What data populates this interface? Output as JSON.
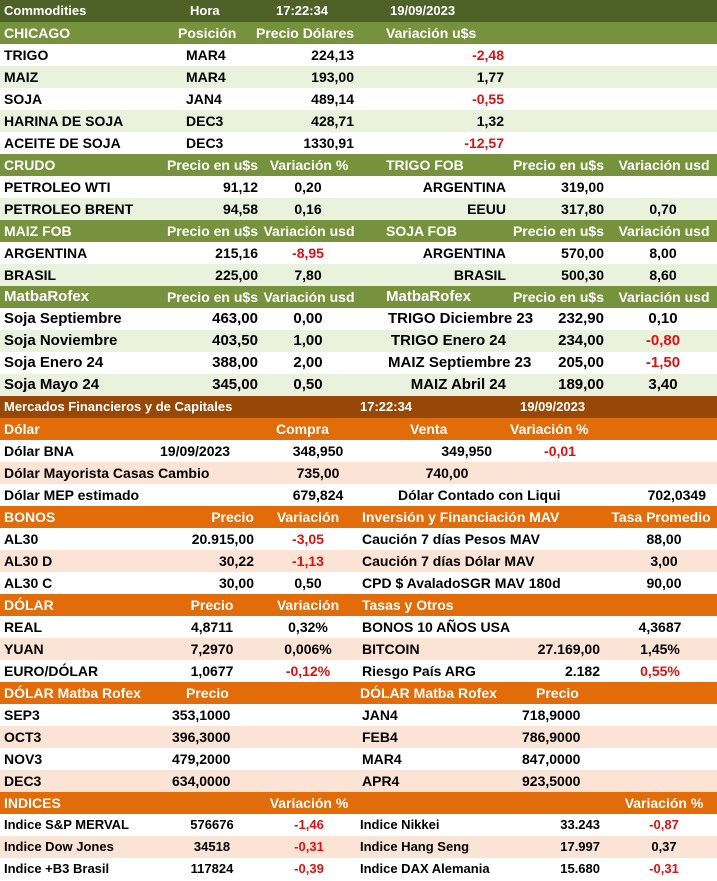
{
  "header": {
    "title": "Commodities",
    "hora_label": "Hora",
    "time": "17:22:34",
    "date": "19/09/2023"
  },
  "chicago": {
    "headers": [
      "CHICAGO",
      "Posición",
      "Precio Dólares",
      "Variación u$s"
    ],
    "rows": [
      {
        "name": "TRIGO",
        "pos": "MAR4",
        "price": "224,13",
        "var": "-2,48"
      },
      {
        "name": "MAIZ",
        "pos": "MAR4",
        "price": "193,00",
        "var": "1,77"
      },
      {
        "name": "SOJA",
        "pos": "JAN4",
        "price": "489,14",
        "var": "-0,55"
      },
      {
        "name": "HARINA DE SOJA",
        "pos": "DEC3",
        "price": "428,71",
        "var": "1,32"
      },
      {
        "name": "ACEITE DE SOJA",
        "pos": "DEC3",
        "price": "1330,91",
        "var": "-12,57"
      }
    ]
  },
  "crudo_fob": {
    "headers": [
      "CRUDO",
      "Precio en u$s",
      "Variación %",
      "TRIGO FOB",
      "Precio en u$s",
      "Variación usd"
    ],
    "rows": [
      {
        "a": "PETROLEO WTI",
        "b": "91,12",
        "c": "0,20",
        "d": "ARGENTINA",
        "e": "319,00",
        "f": ""
      },
      {
        "a": "PETROLEO BRENT",
        "b": "94,58",
        "c": "0,16",
        "d": "EEUU",
        "e": "317,80",
        "f": "0,70"
      }
    ]
  },
  "maiz_soja_fob": {
    "headers": [
      "MAIZ FOB",
      "Precio en u$s",
      "Variación usd",
      "SOJA FOB",
      "Precio en u$s",
      "Variación usd"
    ],
    "rows": [
      {
        "a": "ARGENTINA",
        "b": "215,16",
        "c": "-8,95",
        "d": "ARGENTINA",
        "e": "570,00",
        "f": "8,00"
      },
      {
        "a": "BRASIL",
        "b": "225,00",
        "c": "7,80",
        "d": "BRASIL",
        "e": "500,30",
        "f": "8,60"
      }
    ]
  },
  "matba": {
    "headers": [
      "MatbaRofex",
      "Precio en u$s",
      "Variación usd",
      "MatbaRofex",
      "Precio en u$s",
      "Variación usd"
    ],
    "rows": [
      {
        "a": "Soja Septiembre",
        "b": "463,00",
        "c": "0,00",
        "d": "TRIGO Diciembre 23",
        "e": "232,90",
        "f": "0,10"
      },
      {
        "a": "Soja Noviembre",
        "b": "403,50",
        "c": "1,00",
        "d": "TRIGO Enero 24",
        "e": "234,00",
        "f": "-0,80"
      },
      {
        "a": "Soja Enero 24",
        "b": "388,00",
        "c": "2,00",
        "d": "MAIZ Septiembre 23",
        "e": "205,00",
        "f": "-1,50"
      },
      {
        "a": "Soja Mayo 24",
        "b": "345,00",
        "c": "0,50",
        "d": "MAIZ Abril 24",
        "e": "189,00",
        "f": "3,40"
      }
    ]
  },
  "mercados": {
    "title": "Mercados Financieros y de Capitales",
    "time": "17:22:34",
    "date": "19/09/2023"
  },
  "dolar": {
    "headers": [
      "Dólar",
      "Compra",
      "Venta",
      "Variación %"
    ],
    "bna": {
      "label": "Dólar BNA",
      "date": "19/09/2023",
      "compra": "348,950",
      "venta": "349,950",
      "var": "-0,01"
    },
    "mayorista": {
      "label": "Dólar Mayorista Casas Cambio",
      "compra": "735,00",
      "venta": "740,00"
    },
    "mep": {
      "label": "Dólar MEP estimado",
      "compra": "679,824",
      "ccl_label": "Dólar Contado con Liqui",
      "ccl_value": "702,0349"
    }
  },
  "bonos": {
    "headers": [
      "BONOS",
      "Precio",
      "Variación",
      "Inversión y Financiación MAV",
      "Tasa Promedio"
    ],
    "rows": [
      {
        "a": "AL30",
        "b": "20.915,00",
        "c": "-3,05",
        "d": "Caución 7 días Pesos MAV",
        "e": "88,00"
      },
      {
        "a": "AL30 D",
        "b": "30,22",
        "c": "-1,13",
        "d": "Caución 7 días Dólar MAV",
        "e": "3,00"
      },
      {
        "a": "AL30 C",
        "b": "30,00",
        "c": "0,50",
        "d": "CPD $ AvaladoSGR  MAV 180d",
        "e": "90,00"
      }
    ]
  },
  "dolar_tasas": {
    "headers": [
      "DÓLAR",
      "Precio",
      "Variación",
      "Tasas y Otros"
    ],
    "rows": [
      {
        "a": "REAL",
        "b": "4,8711",
        "c": "0,32%",
        "d": "BONOS 10 AÑOS USA",
        "e": "",
        "f": "4,3687"
      },
      {
        "a": "YUAN",
        "b": "7,2970",
        "c": "0,006%",
        "d": "BITCOIN",
        "e": "27.169,00",
        "f": "1,45%"
      },
      {
        "a": "EURO/DÓLAR",
        "b": "1,0677",
        "c": "-0,12%",
        "d": "Riesgo País ARG",
        "e": "2.182",
        "f": "0,55%"
      }
    ]
  },
  "dolar_matba": {
    "headers": [
      "DÓLAR Matba Rofex",
      "Precio",
      "DÓLAR Matba Rofex",
      "Precio"
    ],
    "rows": [
      {
        "a": "SEP3",
        "b": "353,1000",
        "c": "JAN4",
        "d": "718,9000"
      },
      {
        "a": "OCT3",
        "b": "396,3000",
        "c": "FEB4",
        "d": "786,9000"
      },
      {
        "a": "NOV3",
        "b": "479,2000",
        "c": "MAR4",
        "d": "847,0000"
      },
      {
        "a": "DEC3",
        "b": "634,0000",
        "c": "APR4",
        "d": "923,5000"
      }
    ]
  },
  "indices": {
    "headers": [
      "INDICES",
      "Variación %",
      "Variación %"
    ],
    "rows": [
      {
        "a": "Indice S&P MERVAL",
        "b": "576676",
        "c": "-1,46",
        "d": "Indice Nikkei",
        "e": "33.243",
        "f": "-0,87"
      },
      {
        "a": "Indice Dow Jones",
        "b": "34518",
        "c": "-0,31",
        "d": "Indice Hang Seng",
        "e": "17.997",
        "f": "0,37"
      },
      {
        "a": "Indice +B3 Brasil",
        "b": "117824",
        "c": "-0,39",
        "d": "Indice DAX Alemania",
        "e": "15.680",
        "f": "-0,31"
      }
    ]
  },
  "colors": {
    "green_dark": "#4e6228",
    "green_header": "#76923c",
    "green_stripe": "#eaf1dd",
    "orange_dark": "#974706",
    "orange_header": "#e26b0a",
    "orange_stripe": "#fbe4d5",
    "negative_red": "#e01010"
  }
}
